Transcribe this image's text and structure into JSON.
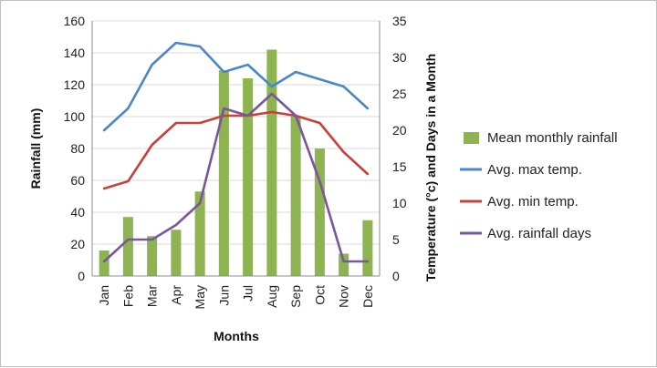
{
  "chart_data": {
    "type": "bar",
    "title": "",
    "xlabel": "Months",
    "ylabel": "Rainfall (mm)",
    "y2label": "Temperature (°c) and Days in a Month",
    "ylim": [
      0,
      160
    ],
    "y2lim": [
      0,
      35
    ],
    "yticks": [
      "0",
      "20",
      "40",
      "60",
      "80",
      "100",
      "120",
      "140",
      "160"
    ],
    "y2ticks": [
      "0",
      "5",
      "10",
      "15",
      "20",
      "25",
      "30",
      "35"
    ],
    "categories": [
      "Jan",
      "Feb",
      "Mar",
      "Apr",
      "May",
      "Jun",
      "Jul",
      "Aug",
      "Sep",
      "Oct",
      "Nov",
      "Dec"
    ],
    "grid": true,
    "legend_position": "right",
    "series": [
      {
        "name": "Mean monthly rainfall",
        "type": "bar",
        "axis": "left",
        "color": "#8db451",
        "values": [
          16,
          37,
          25,
          29,
          53,
          129,
          124,
          142,
          100,
          80,
          14,
          35
        ]
      },
      {
        "name": "Avg. max temp.",
        "type": "line",
        "axis": "right",
        "color": "#4a87c6",
        "values": [
          20,
          23,
          29,
          32,
          31.5,
          28,
          29,
          26,
          28,
          27,
          26,
          23
        ]
      },
      {
        "name": "Avg. min temp.",
        "type": "line",
        "axis": "right",
        "color": "#c8403c",
        "values": [
          12,
          13,
          18,
          21,
          21,
          22,
          22,
          22.5,
          22,
          21,
          17,
          14
        ]
      },
      {
        "name": "Avg. rainfall days",
        "type": "line",
        "axis": "right",
        "color": "#7a569c",
        "values": [
          2,
          5,
          5,
          7,
          10,
          23,
          22,
          25,
          22,
          13,
          2,
          2
        ]
      }
    ]
  }
}
